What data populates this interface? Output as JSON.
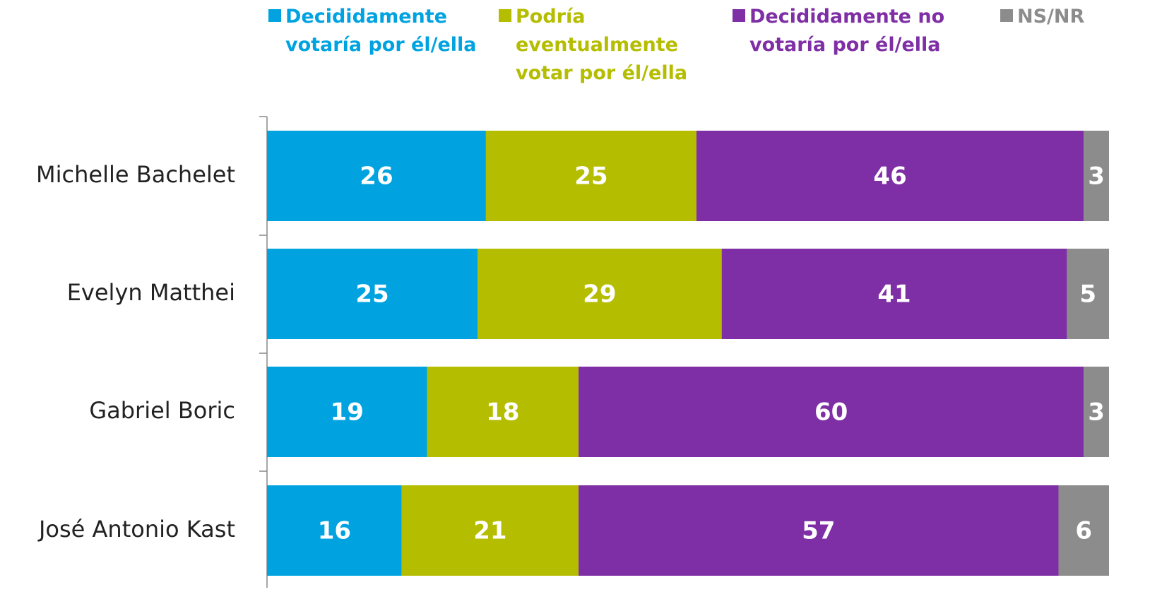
{
  "chart_data": {
    "type": "stacked_bar_horizontal",
    "categories": [
      "Michelle Bachelet",
      "Evelyn Matthei",
      "Gabriel Boric",
      "José Antonio Kast"
    ],
    "series": [
      {
        "name": "Decididamente votaría por él/ella",
        "color": "#00a3e0",
        "values": [
          26,
          25,
          19,
          16
        ]
      },
      {
        "name": "Podría eventualmente votar por él/ella",
        "color": "#b5bd00",
        "values": [
          25,
          29,
          18,
          21
        ]
      },
      {
        "name": "Decididamente no votaría por él/ella",
        "color": "#7f2fa5",
        "values": [
          46,
          41,
          60,
          57
        ]
      },
      {
        "name": "NS/NR",
        "color": "#8c8c8c",
        "values": [
          3,
          5,
          3,
          6
        ]
      }
    ],
    "xlim": [
      0,
      100
    ]
  }
}
